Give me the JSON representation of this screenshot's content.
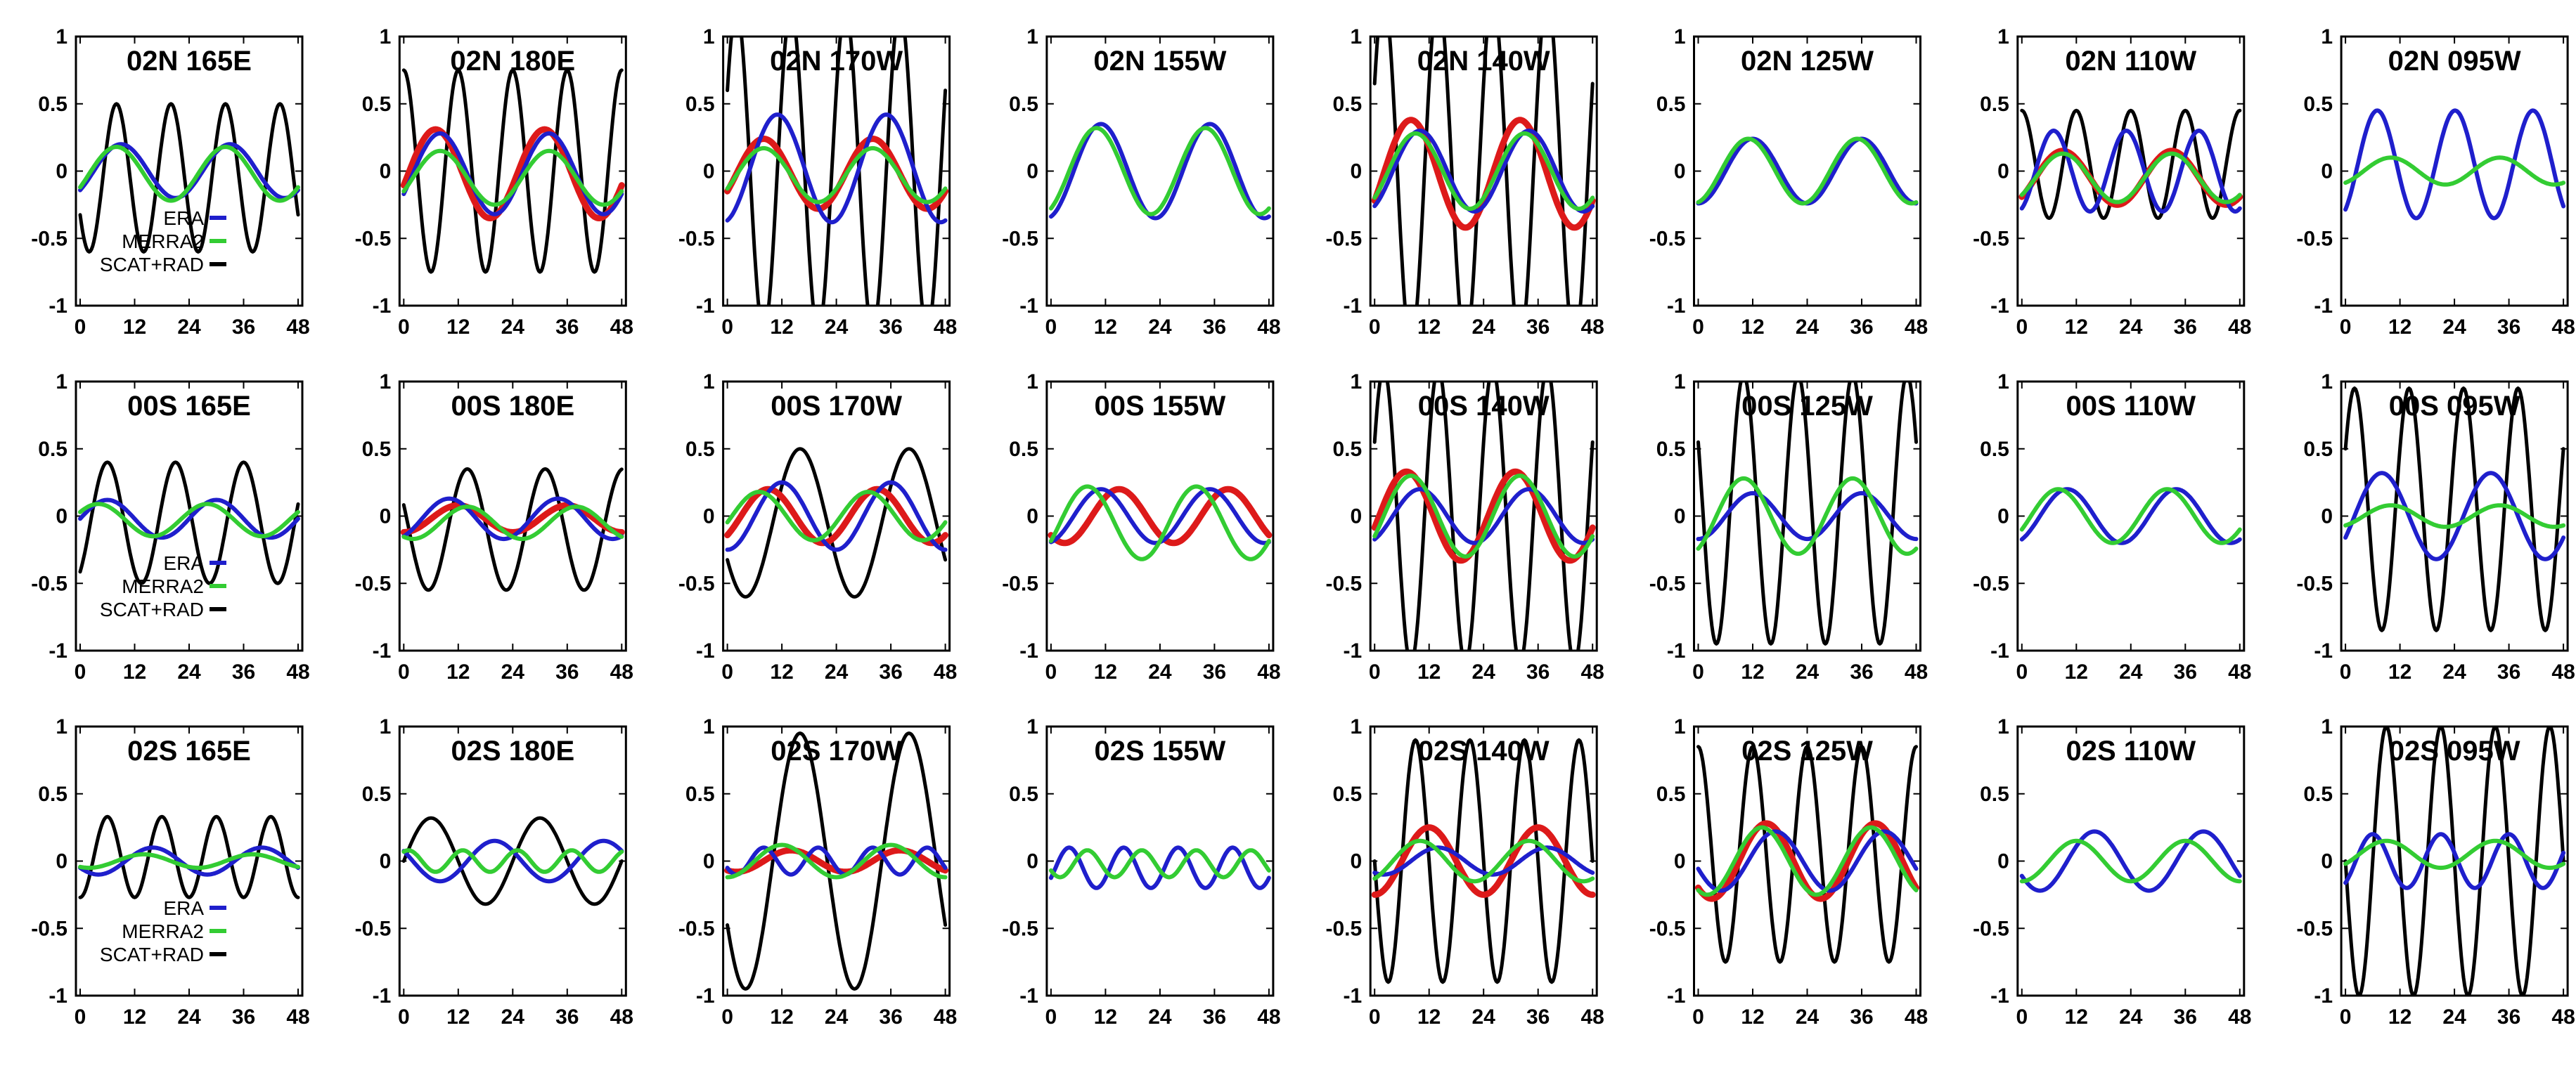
{
  "figure": {
    "rows": 3,
    "cols": 8
  },
  "colors": {
    "ERA": "#1f1fcc",
    "MERRA2": "#33cc33",
    "SCAT+RAD": "#000000",
    "red": "#dd1a1a"
  },
  "legend_labels": [
    "ERA",
    "MERRA2",
    "SCAT+RAD"
  ],
  "chart_data": {
    "type": "line",
    "description": "Diurnal cycle panels; each series given as mean/amplitude/peak hour/harmonic",
    "xlim": [
      0,
      48
    ],
    "ylim": [
      -1,
      1
    ],
    "xticks": [
      "0",
      "12",
      "24",
      "36",
      "48"
    ],
    "yticks": [
      "1",
      "0.5",
      "0",
      "-0.5",
      "-1"
    ],
    "panels": [
      {
        "title": "02N 165E",
        "legend": true,
        "series": [
          {
            "name": "ERA",
            "amp": 0.2,
            "peak": 9,
            "mean": 0.0
          },
          {
            "name": "MERRA2",
            "amp": 0.2,
            "peak": 8,
            "mean": -0.02
          },
          {
            "name": "SCAT+RAD",
            "amp": 0.55,
            "peak": 8,
            "harm": 2,
            "mean": -0.05
          }
        ]
      },
      {
        "title": "02N 180E",
        "series": [
          {
            "name": "red",
            "amp": 0.33,
            "peak": 7,
            "mean": -0.02
          },
          {
            "name": "ERA",
            "amp": 0.3,
            "peak": 8,
            "mean": -0.02
          },
          {
            "name": "MERRA2",
            "amp": 0.2,
            "peak": 8,
            "mean": -0.05
          },
          {
            "name": "SCAT+RAD",
            "amp": 0.75,
            "peak": 12,
            "harm": 2,
            "mean": 0.0
          }
        ]
      },
      {
        "title": "02N 170W",
        "series": [
          {
            "name": "red",
            "amp": 0.26,
            "peak": 8,
            "mean": -0.02
          },
          {
            "name": "ERA",
            "amp": 0.4,
            "peak": 11,
            "mean": 0.02
          },
          {
            "name": "MERRA2",
            "amp": 0.2,
            "peak": 8,
            "mean": -0.03
          },
          {
            "name": "SCAT+RAD",
            "amp": 1.2,
            "peak": 14,
            "harm": 2,
            "mean": 0.0
          }
        ]
      },
      {
        "title": "02N 155W",
        "series": [
          {
            "name": "ERA",
            "amp": 0.35,
            "peak": 11,
            "mean": 0.0
          },
          {
            "name": "MERRA2",
            "amp": 0.32,
            "peak": 10,
            "mean": 0.0
          }
        ]
      },
      {
        "title": "02N 140W",
        "series": [
          {
            "name": "red",
            "amp": 0.4,
            "peak": 8,
            "mean": -0.02
          },
          {
            "name": "ERA",
            "amp": 0.3,
            "peak": 10,
            "mean": 0.0
          },
          {
            "name": "MERRA2",
            "amp": 0.28,
            "peak": 9,
            "mean": 0.0
          },
          {
            "name": "SCAT+RAD",
            "amp": 1.3,
            "peak": 14,
            "harm": 2,
            "mean": 0.0
          }
        ]
      },
      {
        "title": "02N 125W",
        "series": [
          {
            "name": "ERA",
            "amp": 0.24,
            "peak": 12,
            "mean": 0.0
          },
          {
            "name": "MERRA2",
            "amp": 0.24,
            "peak": 11,
            "mean": 0.0
          }
        ]
      },
      {
        "title": "02N 110W",
        "series": [
          {
            "name": "red",
            "amp": 0.2,
            "peak": 9,
            "mean": -0.05
          },
          {
            "name": "ERA",
            "amp": 0.3,
            "peak": 7,
            "harm": 1.5,
            "mean": 0.0
          },
          {
            "name": "MERRA2",
            "amp": 0.18,
            "peak": 9,
            "mean": -0.05
          },
          {
            "name": "SCAT+RAD",
            "amp": 0.4,
            "peak": 12,
            "harm": 2,
            "mean": 0.05
          }
        ]
      },
      {
        "title": "02N 095W",
        "series": [
          {
            "name": "ERA",
            "amp": 0.4,
            "peak": 7,
            "harm": 1.4,
            "mean": 0.05
          },
          {
            "name": "MERRA2",
            "amp": 0.1,
            "peak": 10,
            "mean": 0.0
          }
        ]
      },
      {
        "title": "00S 165E",
        "legend": true,
        "series": [
          {
            "name": "ERA",
            "amp": 0.14,
            "peak": 6,
            "mean": -0.02
          },
          {
            "name": "MERRA2",
            "amp": 0.12,
            "peak": 4,
            "mean": -0.03
          },
          {
            "name": "SCAT+RAD",
            "amp": 0.45,
            "peak": 6,
            "harm": 1.6,
            "mean": -0.05
          }
        ]
      },
      {
        "title": "00S 180E",
        "series": [
          {
            "name": "red",
            "amp": 0.1,
            "peak": 12,
            "mean": -0.02
          },
          {
            "name": "ERA",
            "amp": 0.15,
            "peak": 10,
            "mean": -0.02
          },
          {
            "name": "MERRA2",
            "amp": 0.12,
            "peak": 14,
            "mean": -0.05
          },
          {
            "name": "SCAT+RAD",
            "amp": 0.45,
            "peak": 14,
            "harm": 1.4,
            "mean": -0.1
          }
        ]
      },
      {
        "title": "00S 170W",
        "series": [
          {
            "name": "red",
            "amp": 0.2,
            "peak": 9,
            "mean": 0.0
          },
          {
            "name": "ERA",
            "amp": 0.25,
            "peak": 12,
            "mean": 0.0
          },
          {
            "name": "MERRA2",
            "amp": 0.18,
            "peak": 7,
            "mean": 0.0
          },
          {
            "name": "SCAT+RAD",
            "amp": 0.55,
            "peak": 16,
            "mean": -0.05
          }
        ]
      },
      {
        "title": "00S 155W",
        "series": [
          {
            "name": "red",
            "amp": 0.2,
            "peak": 15,
            "mean": 0.0
          },
          {
            "name": "ERA",
            "amp": 0.2,
            "peak": 11,
            "mean": 0.0
          },
          {
            "name": "MERRA2",
            "amp": 0.27,
            "peak": 8,
            "mean": -0.05
          }
        ]
      },
      {
        "title": "00S 140W",
        "series": [
          {
            "name": "red",
            "amp": 0.33,
            "peak": 7,
            "mean": 0.0
          },
          {
            "name": "ERA",
            "amp": 0.2,
            "peak": 10,
            "mean": 0.0
          },
          {
            "name": "MERRA2",
            "amp": 0.3,
            "peak": 8,
            "mean": 0.0
          },
          {
            "name": "SCAT+RAD",
            "amp": 1.1,
            "peak": 14,
            "harm": 2,
            "mean": 0.0
          }
        ]
      },
      {
        "title": "00S 125W",
        "series": [
          {
            "name": "ERA",
            "amp": 0.17,
            "peak": 12,
            "mean": 0.0
          },
          {
            "name": "MERRA2",
            "amp": 0.28,
            "peak": 10,
            "mean": 0.0
          },
          {
            "name": "SCAT+RAD",
            "amp": 1.0,
            "peak": 10,
            "harm": 2,
            "mean": 0.05
          }
        ]
      },
      {
        "title": "00S 110W",
        "series": [
          {
            "name": "ERA",
            "amp": 0.2,
            "peak": 10,
            "mean": 0.0
          },
          {
            "name": "MERRA2",
            "amp": 0.2,
            "peak": 8,
            "mean": 0.0
          }
        ]
      },
      {
        "title": "00S 095W",
        "series": [
          {
            "name": "ERA",
            "amp": 0.32,
            "peak": 8,
            "mean": 0.0
          },
          {
            "name": "MERRA2",
            "amp": 0.08,
            "peak": 10,
            "mean": 0.0
          },
          {
            "name": "SCAT+RAD",
            "amp": 0.9,
            "peak": 14,
            "harm": 2,
            "mean": 0.05
          }
        ]
      },
      {
        "title": "02S 165E",
        "legend": true,
        "series": [
          {
            "name": "ERA",
            "amp": 0.1,
            "peak": 16,
            "mean": 0.0
          },
          {
            "name": "MERRA2",
            "amp": 0.05,
            "peak": 14,
            "mean": 0.0
          },
          {
            "name": "SCAT+RAD",
            "amp": 0.3,
            "peak": 18,
            "harm": 2,
            "mean": 0.03
          }
        ]
      },
      {
        "title": "02S 180E",
        "series": [
          {
            "name": "ERA",
            "amp": 0.15,
            "peak": 20,
            "mean": 0.0
          },
          {
            "name": "MERRA2",
            "amp": 0.08,
            "peak": 13,
            "harm": 2,
            "mean": 0.0
          },
          {
            "name": "SCAT+RAD",
            "amp": 0.32,
            "peak": 6,
            "mean": 0.0
          }
        ]
      },
      {
        "title": "02S 170W",
        "series": [
          {
            "name": "red",
            "amp": 0.08,
            "peak": 14,
            "mean": 0.0
          },
          {
            "name": "ERA",
            "amp": 0.1,
            "peak": 8,
            "harm": 2,
            "mean": 0.0
          },
          {
            "name": "MERRA2",
            "amp": 0.12,
            "peak": 12,
            "mean": 0.0
          },
          {
            "name": "SCAT+RAD",
            "amp": 0.95,
            "peak": 16,
            "mean": 0.0
          }
        ]
      },
      {
        "title": "02S 155W",
        "series": [
          {
            "name": "ERA",
            "amp": 0.15,
            "peak": 4,
            "harm": 2,
            "mean": -0.05
          },
          {
            "name": "MERRA2",
            "amp": 0.1,
            "peak": 8,
            "harm": 2,
            "mean": -0.02
          }
        ]
      },
      {
        "title": "02S 140W",
        "series": [
          {
            "name": "red",
            "amp": 0.25,
            "peak": 12,
            "mean": 0.0
          },
          {
            "name": "ERA",
            "amp": 0.1,
            "peak": 14,
            "mean": 0.0
          },
          {
            "name": "MERRA2",
            "amp": 0.15,
            "peak": 10,
            "mean": 0.0
          },
          {
            "name": "SCAT+RAD",
            "amp": 0.9,
            "peak": 9,
            "harm": 2,
            "mean": 0.0
          }
        ]
      },
      {
        "title": "02S 125W",
        "series": [
          {
            "name": "red",
            "amp": 0.28,
            "peak": 15,
            "mean": 0.0
          },
          {
            "name": "ERA",
            "amp": 0.22,
            "peak": 17,
            "mean": 0.0
          },
          {
            "name": "MERRA2",
            "amp": 0.25,
            "peak": 14,
            "mean": 0.0
          },
          {
            "name": "SCAT+RAD",
            "amp": 0.8,
            "peak": 12,
            "harm": 2,
            "mean": 0.05
          }
        ]
      },
      {
        "title": "02S 110W",
        "series": [
          {
            "name": "ERA",
            "amp": 0.22,
            "peak": 16,
            "mean": 0.0
          },
          {
            "name": "MERRA2",
            "amp": 0.15,
            "peak": 12,
            "mean": 0.0
          }
        ]
      },
      {
        "title": "02S 095W",
        "series": [
          {
            "name": "ERA",
            "amp": 0.2,
            "peak": 6,
            "harm": 1.6,
            "mean": 0.0
          },
          {
            "name": "MERRA2",
            "amp": 0.1,
            "peak": 9,
            "mean": 0.05
          },
          {
            "name": "SCAT+RAD",
            "amp": 1.0,
            "peak": 9,
            "harm": 2,
            "mean": 0.0
          }
        ]
      }
    ]
  }
}
